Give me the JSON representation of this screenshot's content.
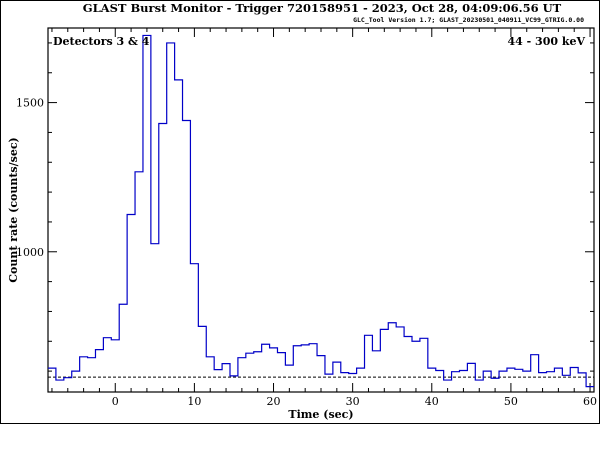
{
  "header": {
    "title": "GLAST Burst Monitor  -  Trigger 720158951  -  2023, Oct 28, 04:09:06.56 UT",
    "subtitle": "GLC_Tool Version 1.7; GLAST_20230501_040911_VC99_GTRIG.0.00"
  },
  "panel": {
    "detectors_label": "Detectors 3 & 4",
    "energy_label": "44 - 300 keV"
  },
  "chart_data": {
    "type": "line",
    "style": "step-histogram",
    "xlabel": "Time (sec)",
    "ylabel": "Count rate (counts/sec)",
    "xlim": [
      -8.5,
      60.5
    ],
    "ylim": [
      530,
      1750
    ],
    "xticks": [
      0,
      10,
      20,
      30,
      40,
      50,
      60
    ],
    "yticks": [
      1000,
      1500
    ],
    "bin_width": 1,
    "bin_start": -8.5,
    "background_level": 580,
    "series_color": "#0000c8",
    "values": [
      610,
      570,
      578,
      600,
      648,
      645,
      672,
      712,
      705,
      824,
      1125,
      1268,
      1725,
      1027,
      1430,
      1700,
      1576,
      1440,
      960,
      750,
      648,
      605,
      625,
      584,
      645,
      660,
      665,
      690,
      678,
      662,
      620,
      685,
      688,
      692,
      652,
      590,
      630,
      595,
      592,
      610,
      720,
      668,
      740,
      762,
      748,
      716,
      700,
      710,
      610,
      602,
      570,
      598,
      602,
      626,
      570,
      600,
      576,
      600,
      610,
      606,
      600,
      655,
      595,
      598,
      610,
      586,
      612,
      594,
      548
    ]
  }
}
